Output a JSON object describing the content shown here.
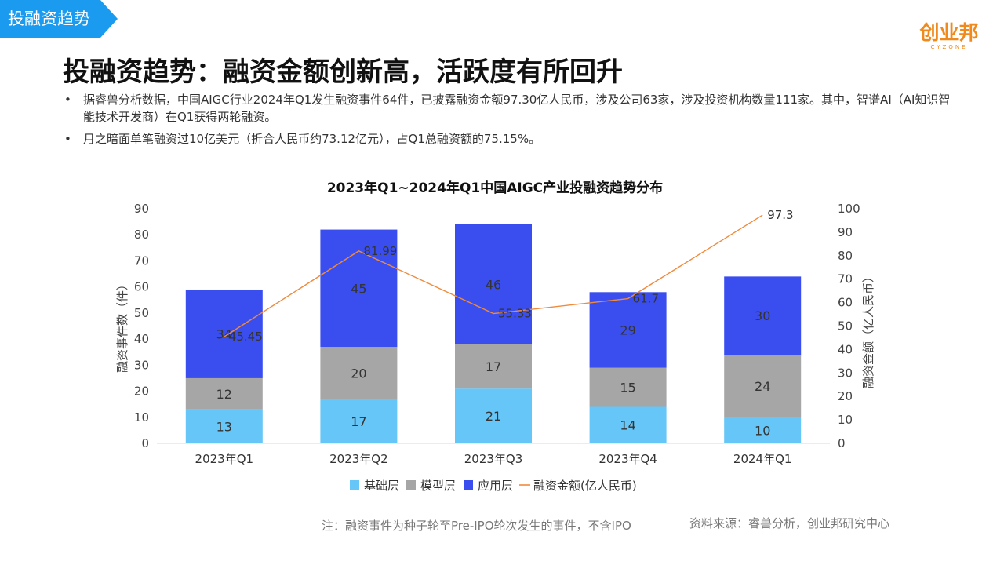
{
  "header": {
    "section_tab": "投融资趋势",
    "logo_main": "创业邦",
    "logo_sub": "CYZONE",
    "page_title": "投融资趋势：融资金额创新高，活跃度有所回升"
  },
  "bullets": [
    "据睿兽分析数据，中国AIGC行业2024年Q1发生融资事件64件，已披露融资金额97.30亿人民币，涉及公司63家，涉及投资机构数量111家。其中，智谱AI（AI知识智能技术开发商）在Q1获得两轮融资。",
    "月之暗面单笔融资过10亿美元（折合人民币约73.12亿元），占Q1总融资额的75.15%。"
  ],
  "bullet_marker": "•",
  "footer": {
    "note": "注：融资事件为种子轮至Pre-IPO轮次发生的事件，不含IPO",
    "source": "资料来源：睿兽分析，创业邦研究中心"
  },
  "colors": {
    "tab_bg": "#1a9bf0",
    "logo": "#f08a1c",
    "basic": "#66c6f7",
    "model": "#a6a6a6",
    "application": "#3a4ef0",
    "amount_line": "#f08a3c"
  },
  "chart_data": {
    "type": "bar",
    "stacked": true,
    "title": "2023年Q1~2024年Q1中国AIGC产业投融资趋势分布",
    "categories": [
      "2023年Q1",
      "2023年Q2",
      "2023年Q3",
      "2023年Q4",
      "2024年Q1"
    ],
    "series": [
      {
        "name": "基础层",
        "type": "bar",
        "axis": "left",
        "values": [
          13,
          17,
          21,
          14,
          10
        ]
      },
      {
        "name": "模型层",
        "type": "bar",
        "axis": "left",
        "values": [
          12,
          20,
          17,
          15,
          24
        ]
      },
      {
        "name": "应用层",
        "type": "bar",
        "axis": "left",
        "values": [
          34,
          45,
          46,
          29,
          30
        ]
      },
      {
        "name": "融资金额(亿人民币)",
        "type": "line",
        "axis": "right",
        "values": [
          45.45,
          81.99,
          55.33,
          61.7,
          97.3
        ]
      }
    ],
    "ylabel": "融资事件数（件）",
    "y2label": "融资金额（亿人民币）",
    "ylim": [
      0,
      90
    ],
    "y2lim": [
      0,
      100
    ],
    "yticks": [
      0,
      10,
      20,
      30,
      40,
      50,
      60,
      70,
      80,
      90
    ],
    "y2ticks": [
      0,
      10,
      20,
      30,
      40,
      50,
      60,
      70,
      80,
      90,
      100
    ],
    "grid": false,
    "legend": "bottom"
  }
}
